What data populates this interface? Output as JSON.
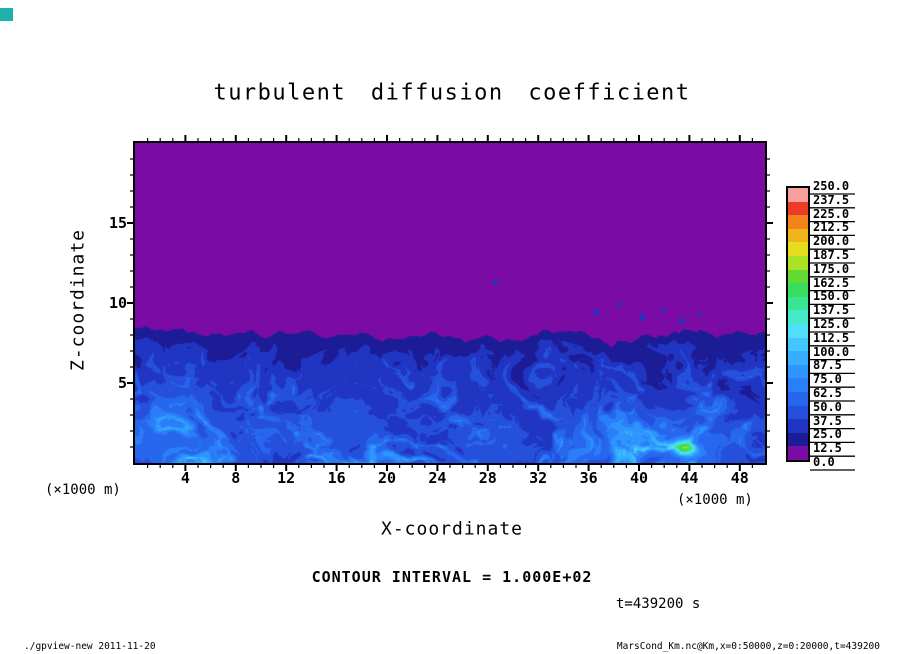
{
  "decorations": {
    "corner_square_color": "#20b2aa"
  },
  "chart_data": {
    "type": "heatmap",
    "title": "turbulent diffusion coefficient",
    "xlabel": "X-coordinate",
    "ylabel": "Z-coordinate",
    "x_unit": "(×1000 m)",
    "y_unit": "(×1000 m)",
    "xlim": [
      0,
      50
    ],
    "zlim": [
      0,
      20
    ],
    "x_ticks_major": [
      4,
      8,
      12,
      16,
      20,
      24,
      28,
      32,
      36,
      40,
      44,
      48
    ],
    "y_ticks_major": [
      5,
      10,
      15
    ],
    "minor_tick_step": 1,
    "grid": false,
    "contour_interval_label": "CONTOUR INTERVAL = 1.000E+02",
    "time_label": "t=439200 s",
    "footer_left": "./gpview-new  2011-11-20",
    "footer_right": "MarsCond_Km.nc@Km,x=0:50000,z=0:20000,t=439200",
    "colorbar": {
      "levels": [
        0.0,
        12.5,
        25.0,
        37.5,
        50.0,
        62.5,
        75.0,
        87.5,
        100.0,
        112.5,
        125.0,
        137.5,
        150.0,
        162.5,
        175.0,
        187.5,
        200.0,
        212.5,
        225.0,
        237.5,
        250.0
      ],
      "labels_top_to_bottom": [
        "250.0",
        "237.5",
        "225.0",
        "212.5",
        "200.0",
        "187.5",
        "175.0",
        "162.5",
        "150.0",
        "137.5",
        "125.0",
        "112.5",
        "100.0",
        "87.5",
        "75.0",
        "62.5",
        "50.0",
        "37.5",
        "25.0",
        "12.5",
        "0.0"
      ],
      "cell_width": 12.5,
      "colors_bottom_to_top": [
        "#7a0ba5",
        "#1c1c96",
        "#2135c3",
        "#2450dc",
        "#2767ee",
        "#2a7ef8",
        "#2e95fe",
        "#37aeff",
        "#44c7ff",
        "#52dff8",
        "#45ebc8",
        "#3ae492",
        "#38dc5f",
        "#62da33",
        "#abe224",
        "#e8dc1e",
        "#f0b51d",
        "#f4831c",
        "#ec3b26",
        "#f8a0a0"
      ]
    },
    "field": {
      "description": "Turbulent diffusion coefficient: ~0 (purple) above a wavy boundary-layer top near z≈8 (×1000 m); turbulent filaments ~12–125 (blues/cyans) below; isolated detached specks above the interface near x≈28–45; local green maximum ~160 near x≈43.5, z≈1.",
      "background_value": 0,
      "boundary_mean": 8.0,
      "boundary_amp": 0.9,
      "base_value": 16,
      "filament_gain": 75,
      "specks": [
        {
          "x": 28.6,
          "z": 11.3,
          "r": 0.18,
          "v": 30
        },
        {
          "x": 36.6,
          "z": 9.4,
          "r": 0.2,
          "v": 30
        },
        {
          "x": 38.4,
          "z": 9.9,
          "r": 0.15,
          "v": 28
        },
        {
          "x": 40.3,
          "z": 9.1,
          "r": 0.22,
          "v": 30
        },
        {
          "x": 41.9,
          "z": 9.6,
          "r": 0.16,
          "v": 28
        },
        {
          "x": 43.4,
          "z": 8.9,
          "r": 0.2,
          "v": 30
        },
        {
          "x": 44.8,
          "z": 9.3,
          "r": 0.14,
          "v": 28
        }
      ],
      "pools": [
        {
          "x": 2.5,
          "z": 1.6,
          "sx": 5.0,
          "sz": 2.6,
          "gain": 26
        },
        {
          "x": 41.0,
          "z": 1.4,
          "sx": 6.0,
          "sz": 2.0,
          "gain": 26
        },
        {
          "x": 17.0,
          "z": 2.6,
          "sx": 4.0,
          "sz": 2.2,
          "gain": 15
        },
        {
          "x": 28.0,
          "z": 1.2,
          "sx": 3.0,
          "sz": 1.5,
          "gain": 13
        }
      ],
      "hotspot": {
        "x": 43.6,
        "z": 0.9,
        "sx": 0.8,
        "sz": 0.4,
        "gain": 100
      }
    }
  }
}
